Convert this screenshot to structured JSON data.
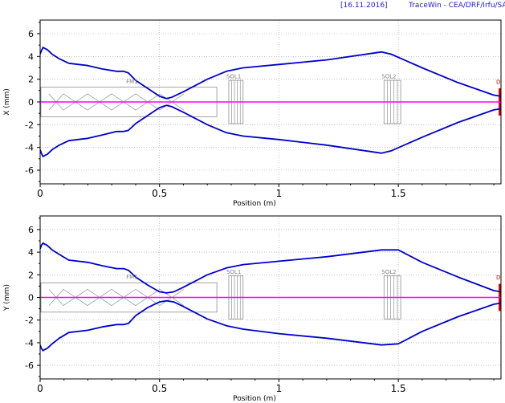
{
  "header": {
    "date": "[16.11.2016]",
    "software": "TraceWin - CEA/DRF/Irfu/SACM"
  },
  "colors": {
    "envelope": "#0000cc",
    "centroid": "#ff00ff",
    "element_outline": "#7f7f7f",
    "diagnostic_marker": "#e00000",
    "grid": "#a0a0a0"
  },
  "chart_data": [
    {
      "type": "line",
      "title": "",
      "xlabel": "Position (m)",
      "ylabel": "X (mm)",
      "xlim": [
        0,
        1.93
      ],
      "ylim": [
        -7.2,
        7.2
      ],
      "xticks": [
        {
          "v": 0,
          "t": "0"
        },
        {
          "v": 0.5,
          "t": "0.5"
        },
        {
          "v": 1,
          "t": "1"
        },
        {
          "v": 1.5,
          "t": "1.5"
        }
      ],
      "yticks": [
        {
          "v": 6,
          "t": "6"
        },
        {
          "v": 4,
          "t": "4"
        },
        {
          "v": 2,
          "t": "2"
        },
        {
          "v": 0,
          "t": "0"
        },
        {
          "v": -2,
          "t": "-2"
        },
        {
          "v": -4,
          "t": "-4"
        },
        {
          "v": -6,
          "t": "-6"
        }
      ],
      "grid": true,
      "series": [
        {
          "role": "envelope_upper",
          "x": [
            0,
            0.005,
            0.012,
            0.02,
            0.03,
            0.05,
            0.08,
            0.12,
            0.2,
            0.26,
            0.32,
            0.35,
            0.37,
            0.4,
            0.45,
            0.5,
            0.52,
            0.53,
            0.55,
            0.6,
            0.7,
            0.78,
            0.85,
            1.0,
            1.2,
            1.43,
            1.47,
            1.6,
            1.75,
            1.9,
            1.93
          ],
          "y": [
            4.2,
            4.5,
            4.8,
            4.7,
            4.6,
            4.2,
            3.8,
            3.4,
            3.2,
            2.9,
            2.7,
            2.7,
            2.55,
            1.9,
            1.2,
            0.5,
            0.35,
            0.3,
            0.4,
            0.9,
            2.0,
            2.7,
            3.0,
            3.3,
            3.7,
            4.4,
            4.2,
            3.0,
            1.7,
            0.6,
            0.5
          ]
        },
        {
          "role": "envelope_lower",
          "x": [
            0,
            0.005,
            0.012,
            0.02,
            0.03,
            0.05,
            0.08,
            0.12,
            0.2,
            0.26,
            0.32,
            0.35,
            0.37,
            0.4,
            0.45,
            0.5,
            0.52,
            0.53,
            0.55,
            0.6,
            0.7,
            0.78,
            0.85,
            1.0,
            1.2,
            1.43,
            1.47,
            1.6,
            1.75,
            1.9,
            1.93
          ],
          "y": [
            -4.2,
            -4.5,
            -4.8,
            -4.7,
            -4.6,
            -4.2,
            -3.8,
            -3.4,
            -3.2,
            -2.9,
            -2.6,
            -2.6,
            -2.5,
            -1.9,
            -1.2,
            -0.5,
            -0.35,
            -0.3,
            -0.4,
            -0.9,
            -2.0,
            -2.7,
            -3.0,
            -3.3,
            -3.8,
            -4.5,
            -4.3,
            -3.1,
            -1.8,
            -0.7,
            -0.6
          ]
        },
        {
          "role": "centroid",
          "x": [
            0,
            1.93
          ],
          "y": [
            0,
            0
          ]
        }
      ],
      "elements": [
        {
          "label": "FM1",
          "x0": 0,
          "x1": 0.74,
          "h": 1.3,
          "label_x": 0.36
        },
        {
          "label": "SOL1",
          "x0": 0.79,
          "x1": 0.85,
          "h": 1.9,
          "label_x": 0.78
        },
        {
          "label": "SOL2",
          "x0": 1.44,
          "x1": 1.51,
          "h": 1.9,
          "label_x": 1.43
        },
        {
          "label": "D",
          "x0": 1.92,
          "x1": 1.935,
          "h": 1.2,
          "label_x": 1.92
        }
      ]
    },
    {
      "type": "line",
      "title": "",
      "xlabel": "Position (m)",
      "ylabel": "Y (mm)",
      "xlim": [
        0,
        1.93
      ],
      "ylim": [
        -7.2,
        7.2
      ],
      "xticks": [
        {
          "v": 0,
          "t": "0"
        },
        {
          "v": 0.5,
          "t": "0.5"
        },
        {
          "v": 1,
          "t": "1"
        },
        {
          "v": 1.5,
          "t": "1.5"
        }
      ],
      "yticks": [
        {
          "v": 6,
          "t": "6"
        },
        {
          "v": 4,
          "t": "4"
        },
        {
          "v": 2,
          "t": "2"
        },
        {
          "v": 0,
          "t": "0"
        },
        {
          "v": -2,
          "t": "-2"
        },
        {
          "v": -4,
          "t": "-4"
        },
        {
          "v": -6,
          "t": "-6"
        }
      ],
      "grid": true,
      "series": [
        {
          "role": "envelope_upper",
          "x": [
            0,
            0.005,
            0.012,
            0.02,
            0.03,
            0.05,
            0.08,
            0.12,
            0.2,
            0.26,
            0.32,
            0.35,
            0.37,
            0.4,
            0.45,
            0.5,
            0.53,
            0.56,
            0.6,
            0.7,
            0.78,
            0.85,
            1.0,
            1.2,
            1.43,
            1.5,
            1.6,
            1.75,
            1.9,
            1.93
          ],
          "y": [
            4.3,
            4.6,
            4.8,
            4.7,
            4.6,
            4.2,
            3.8,
            3.3,
            3.1,
            2.8,
            2.55,
            2.55,
            2.4,
            1.8,
            1.1,
            0.5,
            0.4,
            0.5,
            0.9,
            2.0,
            2.6,
            2.9,
            3.2,
            3.6,
            4.2,
            4.2,
            3.1,
            1.8,
            0.6,
            0.5
          ]
        },
        {
          "role": "envelope_lower",
          "x": [
            0,
            0.005,
            0.012,
            0.02,
            0.03,
            0.05,
            0.08,
            0.12,
            0.2,
            0.26,
            0.32,
            0.35,
            0.37,
            0.4,
            0.45,
            0.5,
            0.53,
            0.56,
            0.6,
            0.7,
            0.78,
            0.85,
            1.0,
            1.2,
            1.43,
            1.5,
            1.6,
            1.75,
            1.9,
            1.93
          ],
          "y": [
            -4.2,
            -4.5,
            -4.7,
            -4.6,
            -4.5,
            -4.1,
            -3.6,
            -3.1,
            -2.9,
            -2.6,
            -2.4,
            -2.4,
            -2.3,
            -1.6,
            -0.9,
            -0.4,
            -0.3,
            -0.4,
            -0.8,
            -1.9,
            -2.5,
            -2.8,
            -3.2,
            -3.6,
            -4.2,
            -4.1,
            -3.0,
            -1.7,
            -0.6,
            -0.5
          ]
        },
        {
          "role": "centroid",
          "x": [
            0,
            1.93
          ],
          "y": [
            0,
            0
          ]
        }
      ],
      "elements": [
        {
          "label": "FM1",
          "x0": 0,
          "x1": 0.74,
          "h": 1.3,
          "label_x": 0.36
        },
        {
          "label": "SOL1",
          "x0": 0.79,
          "x1": 0.85,
          "h": 1.9,
          "label_x": 0.78
        },
        {
          "label": "SOL2",
          "x0": 1.44,
          "x1": 1.51,
          "h": 1.9,
          "label_x": 1.43
        },
        {
          "label": "D",
          "x0": 1.92,
          "x1": 1.935,
          "h": 1.2,
          "label_x": 1.92
        }
      ]
    }
  ]
}
